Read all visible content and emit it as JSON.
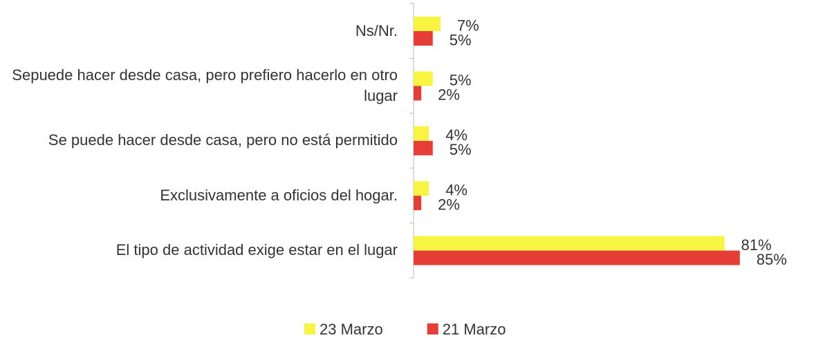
{
  "chart_data": {
    "type": "hbar",
    "categories": [
      "Ns/Nr.",
      "Sepuede hacer desde casa, pero prefiero hacerlo en otro lugar",
      "Se puede hacer desde casa, pero no está permitido",
      "Exclusivamente a oficios del hogar.",
      "El tipo de actividad exige estar en el lugar"
    ],
    "series": [
      {
        "name": "23 Marzo",
        "color": "#f8f442",
        "values": [
          7,
          5,
          4,
          4,
          81
        ],
        "value_labels": [
          "7%",
          "5%",
          "4%",
          "4%",
          "81%"
        ]
      },
      {
        "name": "21 Marzo",
        "color": "#e63e36",
        "values": [
          5,
          2,
          5,
          2,
          85
        ],
        "value_labels": [
          "5%",
          "2%",
          "5%",
          "2%",
          "85%"
        ]
      }
    ],
    "legend": "bottom"
  }
}
